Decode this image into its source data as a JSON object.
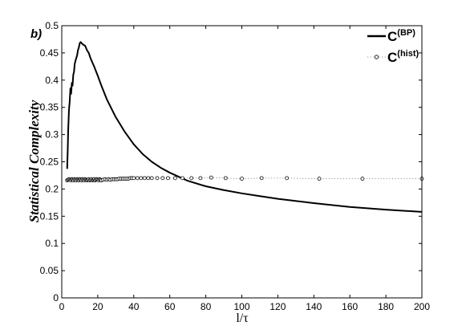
{
  "panel_label": "b)",
  "chart_data": {
    "type": "line",
    "title": "",
    "xlabel": "l/τ",
    "ylabel": "Statistical Complexity",
    "xlim": [
      0,
      200
    ],
    "ylim": [
      0,
      0.5
    ],
    "xticks": [
      0,
      20,
      40,
      60,
      80,
      100,
      120,
      140,
      160,
      180,
      200
    ],
    "yticks": [
      0,
      0.05,
      0.1,
      0.15,
      0.2,
      0.25,
      0.3,
      0.35,
      0.4,
      0.45,
      0.5
    ],
    "grid": false,
    "legend_position": "top-right",
    "series": [
      {
        "name_main": "C",
        "name_sup": "(BP)",
        "style": "solid",
        "color": "#000000",
        "x": [
          3,
          3.3,
          3.6,
          4,
          4.4,
          4.8,
          5.2,
          5.6,
          6,
          6.4,
          6.8,
          7.2,
          7.6,
          8,
          8.5,
          9,
          9.5,
          10,
          10.5,
          11,
          12,
          13,
          14,
          15,
          16,
          18,
          20,
          22,
          25,
          28,
          30,
          35,
          40,
          45,
          50,
          55,
          60,
          70,
          80,
          90,
          100,
          110,
          120,
          140,
          160,
          180,
          200
        ],
        "y": [
          0.237,
          0.27,
          0.31,
          0.345,
          0.36,
          0.385,
          0.375,
          0.395,
          0.39,
          0.41,
          0.415,
          0.43,
          0.435,
          0.44,
          0.445,
          0.455,
          0.46,
          0.468,
          0.47,
          0.468,
          0.465,
          0.463,
          0.455,
          0.45,
          0.44,
          0.425,
          0.408,
          0.39,
          0.365,
          0.345,
          0.332,
          0.305,
          0.282,
          0.264,
          0.25,
          0.239,
          0.23,
          0.215,
          0.205,
          0.198,
          0.192,
          0.187,
          0.182,
          0.174,
          0.167,
          0.162,
          0.158
        ]
      },
      {
        "name_main": "C",
        "name_sup": "(hist)",
        "style": "dotted-circles",
        "color": "#000000",
        "x": [
          3,
          3.5,
          4,
          4.5,
          5,
          5.5,
          6,
          6.5,
          7,
          7.5,
          8,
          8.5,
          9,
          9.5,
          10,
          10.5,
          11,
          11.5,
          12,
          12.5,
          13,
          13.5,
          14,
          14.5,
          15,
          15.5,
          16,
          16.5,
          17,
          17.5,
          18,
          18.5,
          19,
          19.5,
          20,
          20.5,
          21,
          21.5,
          22,
          23,
          24,
          25,
          26,
          27,
          28,
          29,
          30,
          31,
          32,
          33,
          34,
          35,
          36,
          37,
          38,
          39,
          40,
          42,
          44,
          46,
          48,
          50,
          53,
          56,
          59,
          63,
          67,
          72,
          77,
          83,
          91,
          100,
          111,
          125,
          143,
          167,
          200
        ],
        "y": [
          0.216,
          0.217,
          0.218,
          0.217,
          0.216,
          0.218,
          0.217,
          0.216,
          0.218,
          0.217,
          0.216,
          0.218,
          0.217,
          0.216,
          0.218,
          0.217,
          0.216,
          0.218,
          0.217,
          0.216,
          0.218,
          0.217,
          0.216,
          0.217,
          0.218,
          0.216,
          0.217,
          0.218,
          0.216,
          0.217,
          0.218,
          0.216,
          0.217,
          0.218,
          0.217,
          0.216,
          0.218,
          0.217,
          0.216,
          0.217,
          0.218,
          0.217,
          0.218,
          0.217,
          0.218,
          0.218,
          0.218,
          0.218,
          0.219,
          0.219,
          0.219,
          0.219,
          0.219,
          0.219,
          0.22,
          0.22,
          0.22,
          0.22,
          0.22,
          0.22,
          0.22,
          0.22,
          0.22,
          0.22,
          0.22,
          0.22,
          0.22,
          0.22,
          0.22,
          0.221,
          0.22,
          0.219,
          0.22,
          0.22,
          0.219,
          0.219,
          0.219
        ]
      }
    ]
  }
}
